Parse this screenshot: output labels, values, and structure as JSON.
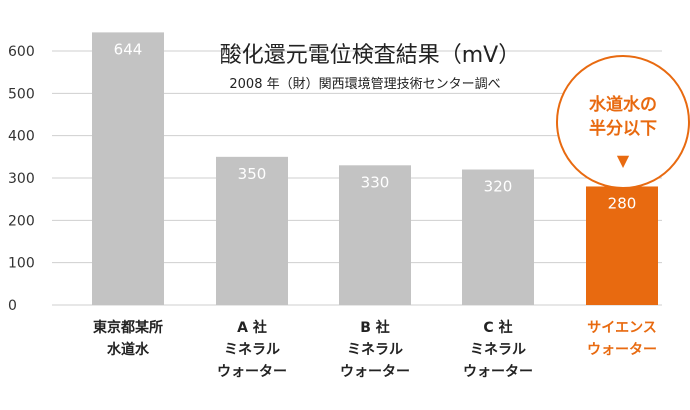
{
  "chart_data": {
    "type": "bar",
    "title": "酸化還元電位検査結果（mV）",
    "subtitle": "2008 年（財）関西環境管理技術センター調べ",
    "categories": [
      [
        "東京都某所",
        "水道水"
      ],
      [
        "A 社",
        "ミネラル",
        "ウォーター"
      ],
      [
        "B 社",
        "ミネラル",
        "ウォーター"
      ],
      [
        "C 社",
        "ミネラル",
        "ウォーター"
      ],
      [
        "サイエンス",
        "ウォーター"
      ]
    ],
    "values": [
      644,
      350,
      330,
      320,
      280
    ],
    "highlight_index": 4,
    "yticks": [
      0,
      100,
      200,
      300,
      400,
      500,
      600
    ],
    "ylim": [
      0,
      650
    ],
    "grid": true,
    "colors": {
      "bar": "#c3c3c3",
      "highlight": "#e86a10",
      "grid": "#cfcfcf"
    },
    "annotation": {
      "lines": [
        "水道水の",
        "半分以下"
      ],
      "marker": "▼"
    }
  }
}
